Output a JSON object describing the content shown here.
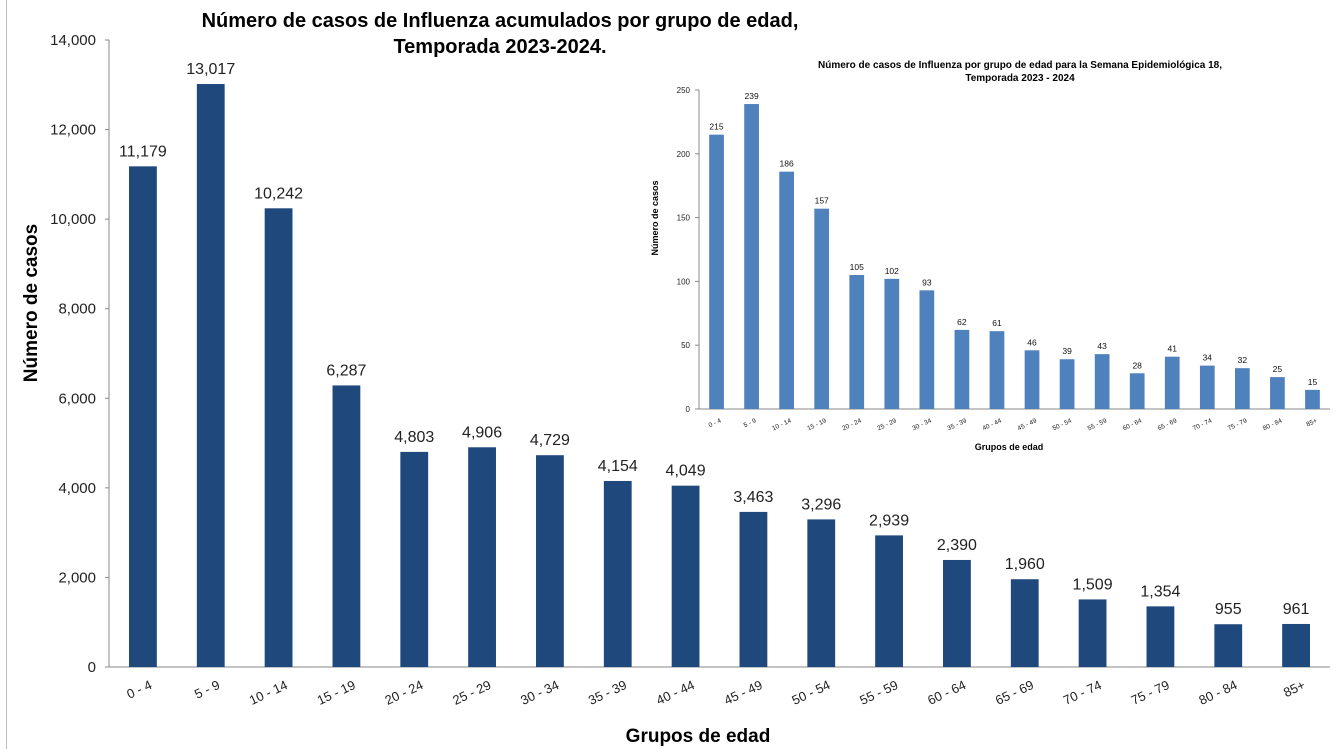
{
  "chart_data": [
    {
      "type": "bar",
      "title": "Número de casos de Influenza acumulados por grupo de edad,",
      "subtitle": "Temporada 2023-2024.",
      "xlabel": "Grupos de edad",
      "ylabel": "Número de casos",
      "ylim": [
        0,
        14000
      ],
      "yticks": [
        "0",
        "2,000",
        "4,000",
        "6,000",
        "8,000",
        "10,000",
        "12,000",
        "14,000"
      ],
      "categories": [
        "0 - 4",
        "5 - 9",
        "10 - 14",
        "15 - 19",
        "20 - 24",
        "25 - 29",
        "30 - 34",
        "35 - 39",
        "40 - 44",
        "45 - 49",
        "50 - 54",
        "55 - 59",
        "60 - 64",
        "65 - 69",
        "70 - 74",
        "75 - 79",
        "80 - 84",
        "85+"
      ],
      "values": [
        11179,
        13017,
        10242,
        6287,
        4803,
        4906,
        4729,
        4154,
        4049,
        3463,
        3296,
        2939,
        2390,
        1960,
        1509,
        1354,
        955,
        961
      ],
      "value_labels": [
        "11,179",
        "13,017",
        "10,242",
        "6,287",
        "4,803",
        "4,906",
        "4,729",
        "4,154",
        "4,049",
        "3,463",
        "3,296",
        "2,939",
        "2,390",
        "1,960",
        "1,509",
        "1,354",
        "955",
        "961"
      ],
      "color": "#1f497d",
      "grid": false,
      "legend": "none"
    },
    {
      "type": "bar",
      "title": "Número de casos de Influenza por grupo de edad para la Semana Epidemiológica 18,",
      "subtitle": "Temporada  2023 - 2024",
      "xlabel": "Grupos de edad",
      "ylabel": "Número de casos",
      "ylim": [
        0,
        250
      ],
      "yticks": [
        "0",
        "50",
        "100",
        "150",
        "200",
        "250"
      ],
      "categories": [
        "0 - 4",
        "5 - 9",
        "10 - 14",
        "15 - 19",
        "20 - 24",
        "25 - 29",
        "30 - 34",
        "35 - 39",
        "40 - 44",
        "45 - 49",
        "50 - 54",
        "55 - 59",
        "60 - 64",
        "65 - 69",
        "70 - 74",
        "75 - 79",
        "80 - 84",
        "85+"
      ],
      "values": [
        215,
        239,
        186,
        157,
        105,
        102,
        93,
        62,
        61,
        46,
        39,
        43,
        28,
        41,
        34,
        32,
        25,
        15
      ],
      "value_labels": [
        "215",
        "239",
        "186",
        "157",
        "105",
        "102",
        "93",
        "62",
        "61",
        "46",
        "39",
        "43",
        "28",
        "41",
        "34",
        "32",
        "25",
        "15"
      ],
      "color": "#4f81bd",
      "grid": false,
      "legend": "none"
    }
  ]
}
